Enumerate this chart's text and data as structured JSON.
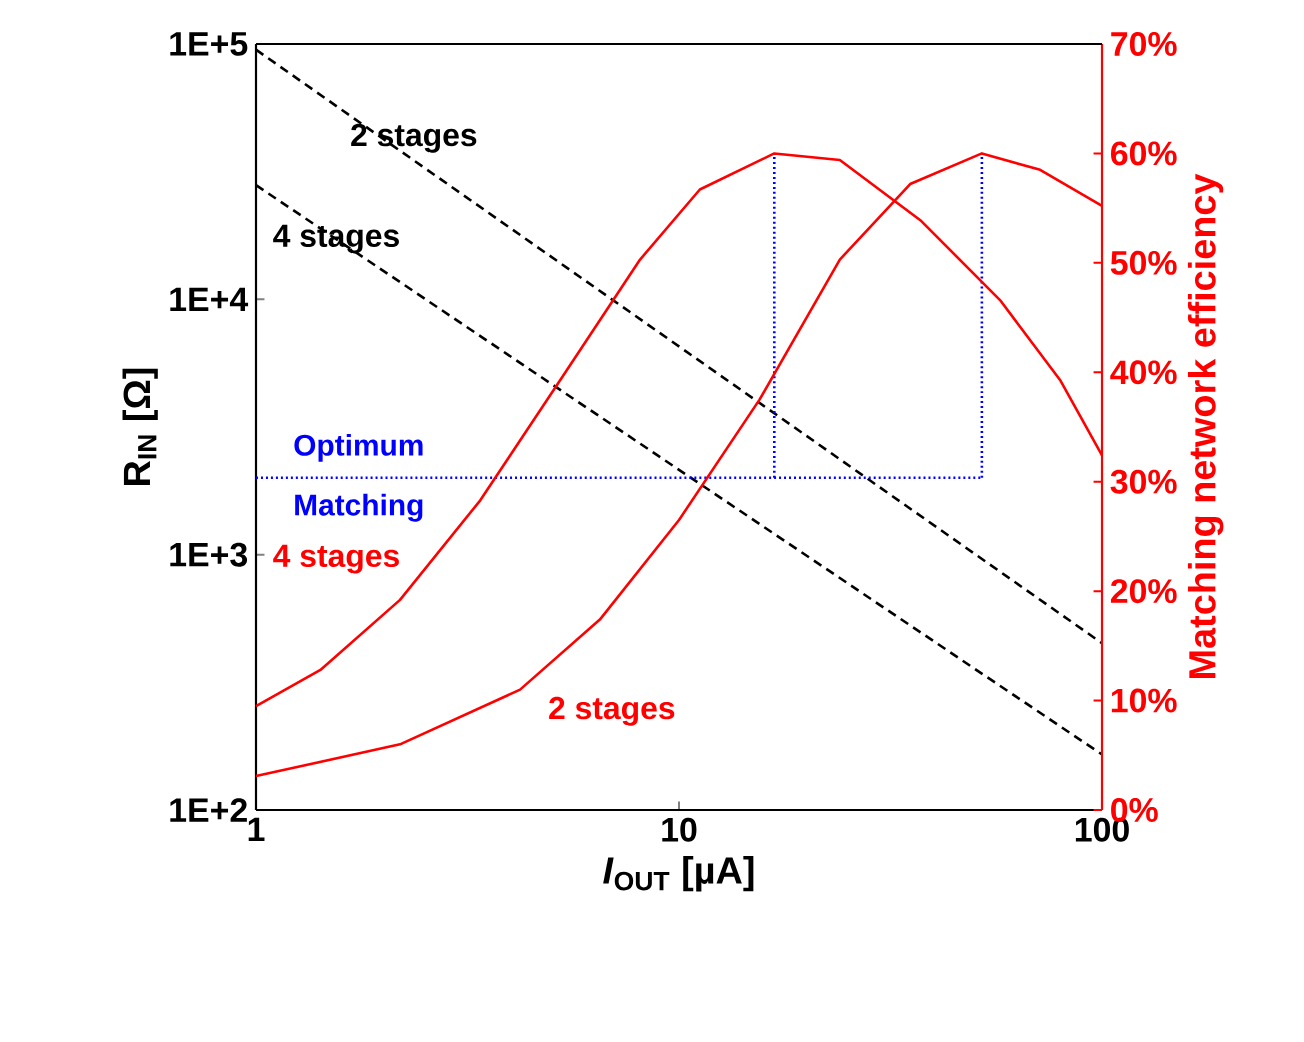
{
  "chart_data": {
    "type": "line",
    "xlabel": "*I*$_{OUT}$ [µA]",
    "ylabel": "R$_{IN}$ [Ω]",
    "y2label": "Matching network efficiency",
    "log": "xy",
    "xlim": [
      1,
      100
    ],
    "xticks": [
      1,
      10,
      100
    ],
    "ylim": [
      100,
      100000
    ],
    "yticks": [
      {
        "value": 100,
        "label": "1E+2"
      },
      {
        "value": 1000,
        "label": "1E+3"
      },
      {
        "value": 10000,
        "label": "1E+4"
      },
      {
        "value": 100000,
        "label": "1E+5"
      }
    ],
    "y2lim": [
      0,
      70
    ],
    "y2ticks": [
      {
        "value": 0,
        "label": "0%"
      },
      {
        "value": 10,
        "label": "10%"
      },
      {
        "value": 20,
        "label": "20%"
      },
      {
        "value": 30,
        "label": "30%"
      },
      {
        "value": 40,
        "label": "40%"
      },
      {
        "value": 50,
        "label": "50%"
      },
      {
        "value": 60,
        "label": "60%"
      },
      {
        "value": 70,
        "label": "70%"
      }
    ],
    "series": [
      {
        "name": "2 stages",
        "color": "#000000",
        "line_style": "dashed",
        "x": [
          1,
          100
        ],
        "values": [
          95000,
          450
        ]
      },
      {
        "name": "4 stages",
        "color": "#000000",
        "line_style": "dashed",
        "x": [
          1,
          100
        ],
        "values": [
          28000,
          165
        ]
      },
      {
        "name": "4 stages",
        "color": "#ff0000",
        "line_style": "solid",
        "axis": "y2",
        "x": [
          1,
          1.42,
          2.19,
          3.39,
          5.24,
          8.09,
          11.2,
          16.8,
          24.0,
          37.2,
          57.4,
          79.6,
          100
        ],
        "values": [
          9.5,
          12.8,
          19.2,
          28.3,
          39.3,
          50.3,
          56.7,
          60,
          59.4,
          53.9,
          46.6,
          39.3,
          32.4
        ]
      },
      {
        "name": "2 stages",
        "color": "#ff0000",
        "line_style": "solid",
        "axis": "y2",
        "x": [
          1,
          2.19,
          4.21,
          6.5,
          10,
          15.5,
          24,
          35.2,
          52,
          71.4,
          100
        ],
        "values": [
          3.1,
          6.0,
          11.0,
          17.4,
          26.5,
          37.5,
          50.3,
          57.2,
          60,
          58.5,
          55.2
        ]
      },
      {
        "color": "#0000ff",
        "line_style": "dotted",
        "x": [
          1,
          52
        ],
        "values": [
          2000,
          2000
        ]
      },
      {
        "color": "#0000ff",
        "line_style": "dotted",
        "x": [
          16.8,
          16.8
        ],
        "values": [
          2000,
          37000
        ]
      },
      {
        "color": "#0000ff",
        "line_style": "dotted",
        "x": [
          52,
          52
        ],
        "values": [
          2000,
          37000
        ]
      }
    ],
    "annotations": [
      {
        "text": "Optimum Matching",
        "x": 1.75,
        "y": 2000
      }
    ]
  }
}
